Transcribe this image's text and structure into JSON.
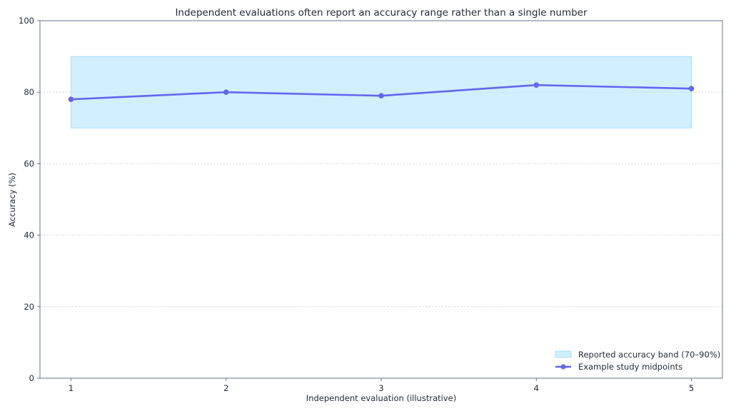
{
  "chart_data": {
    "type": "line",
    "title": "Independent evaluations often report an accuracy range rather than a single number",
    "xlabel": "Independent evaluation (illustrative)",
    "ylabel": "Accuracy (%)",
    "x": [
      1,
      2,
      3,
      4,
      5
    ],
    "xticks": [
      "1",
      "2",
      "3",
      "4",
      "5"
    ],
    "yticks": [
      "0",
      "20",
      "40",
      "60",
      "80",
      "100"
    ],
    "ylim": [
      0,
      100
    ],
    "xlim": [
      0.8,
      5.2
    ],
    "grid": "horizontal",
    "legend_position": "bottom-right",
    "band": {
      "name": "Reported accuracy band (70–90%)",
      "x_range": [
        1,
        5
      ],
      "y_range": [
        70,
        90
      ],
      "color": "#bae6fd"
    },
    "series": [
      {
        "name": "Example study midpoints",
        "values": [
          78,
          80,
          79,
          82,
          81
        ],
        "color": "#6366f1"
      }
    ]
  }
}
